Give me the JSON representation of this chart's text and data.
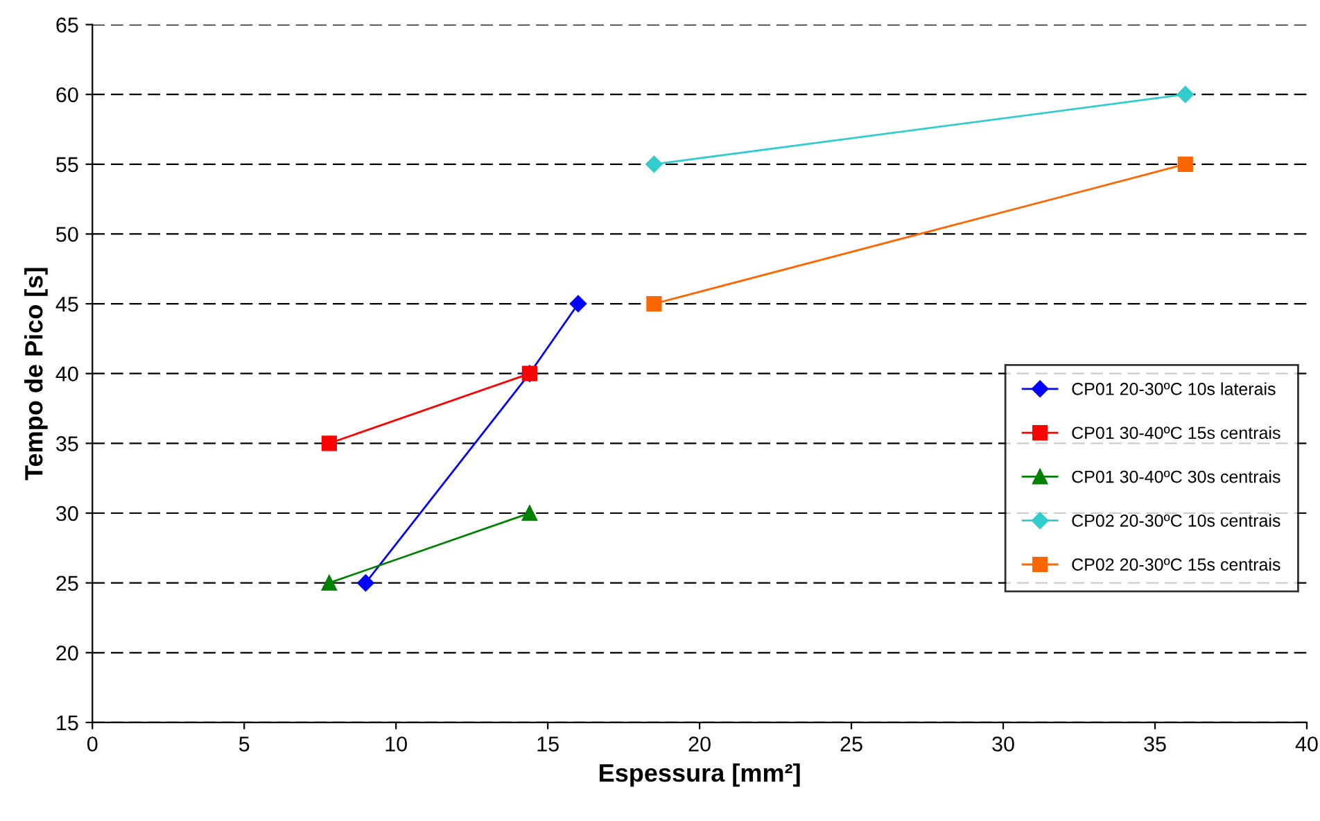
{
  "chart_data": {
    "type": "line",
    "xlabel": "Espessura [mm²]",
    "ylabel": "Tempo de Pico [s]",
    "xlim": [
      0,
      40
    ],
    "xticks": [
      0,
      5,
      10,
      15,
      20,
      25,
      30,
      35,
      40
    ],
    "ylim": [
      15,
      65
    ],
    "yticks": [
      15,
      20,
      25,
      30,
      35,
      40,
      45,
      50,
      55,
      60,
      65
    ],
    "grid": "y",
    "legend": "right",
    "line_style": "solid",
    "series": [
      {
        "name": "CP01 20-30ºC 10s laterais",
        "color": "#0000ff",
        "marker": "diamond",
        "x": [
          9,
          14.4,
          16
        ],
        "values": [
          25,
          40,
          45
        ]
      },
      {
        "name": "CP01 30-40ºC 15s centrais",
        "color": "#ff0000",
        "marker": "square",
        "x": [
          7.8,
          14.4
        ],
        "values": [
          35,
          40
        ]
      },
      {
        "name": "CP01 30-40ºC 30s centrais",
        "color": "#008000",
        "marker": "triangle",
        "x": [
          7.8,
          14.4
        ],
        "values": [
          25,
          30
        ]
      },
      {
        "name": "CP02 20-30ºC 10s centrais",
        "color": "#33cccc",
        "marker": "diamond",
        "x": [
          18.5,
          36
        ],
        "values": [
          55,
          60
        ]
      },
      {
        "name": "CP02 20-30ºC 15s centrais",
        "color": "#ff6600",
        "marker": "square",
        "x": [
          18.5,
          36
        ],
        "values": [
          45,
          55
        ]
      }
    ]
  }
}
